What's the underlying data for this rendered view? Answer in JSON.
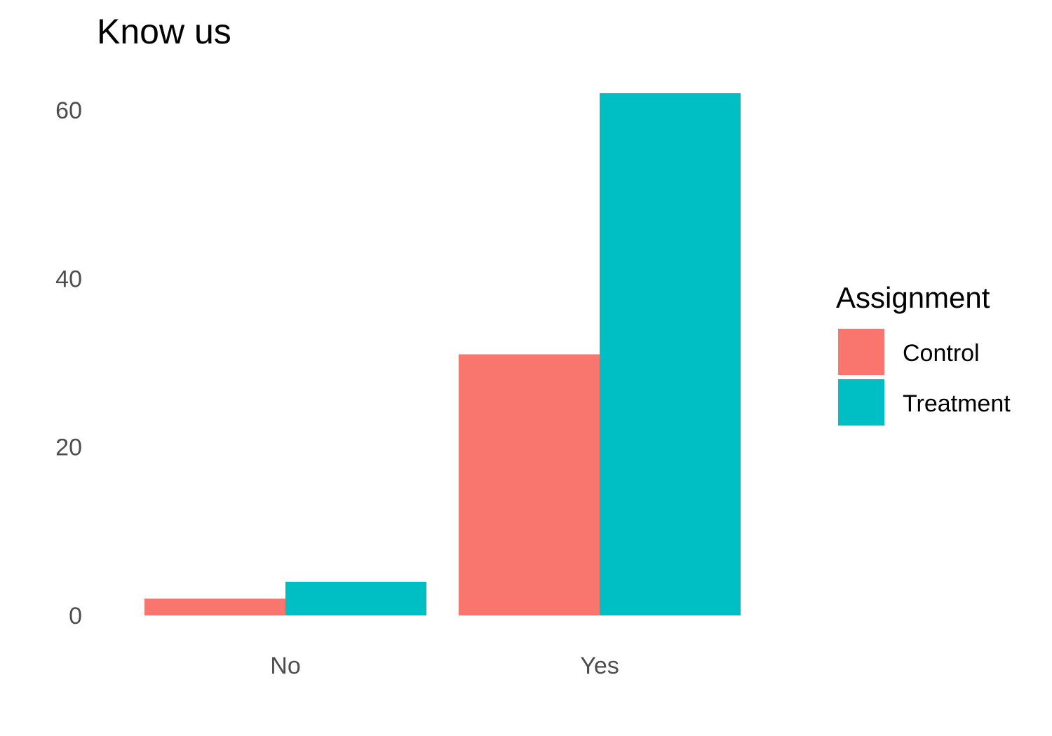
{
  "chart_data": {
    "type": "bar",
    "title": "Know us",
    "xlabel": "",
    "ylabel": "",
    "categories": [
      "No",
      "Yes"
    ],
    "series": [
      {
        "name": "Control",
        "color": "#F8766D",
        "values": [
          2,
          31
        ]
      },
      {
        "name": "Treatment",
        "color": "#00BFC4",
        "values": [
          4,
          62
        ]
      }
    ],
    "ylim": [
      0,
      65
    ],
    "yticks": [
      0,
      20,
      40,
      60
    ],
    "ytick_labels": [
      "0",
      "20",
      "40",
      "60"
    ],
    "grid": false,
    "legend": {
      "title": "Assignment",
      "placement": "right"
    }
  }
}
